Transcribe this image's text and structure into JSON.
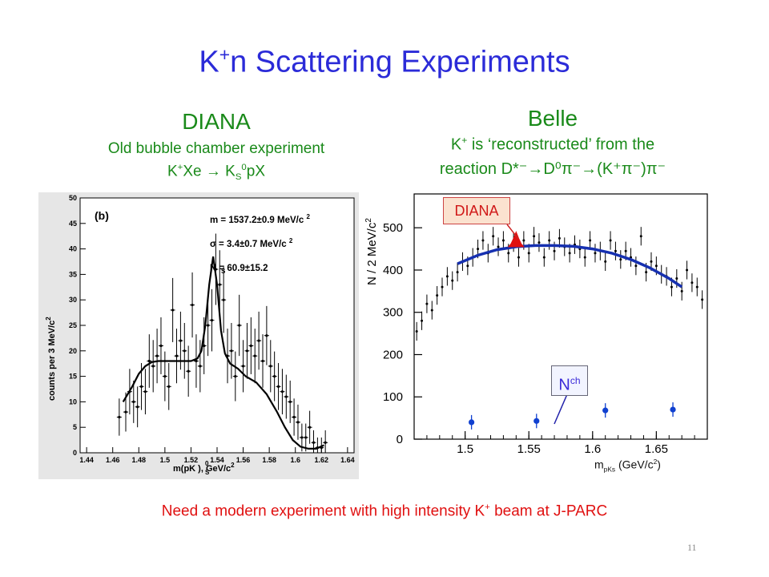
{
  "slide": {
    "title_main": "K",
    "title_sup": "+",
    "title_rest": "n Scattering Experiments",
    "page_number": "11",
    "footer_pre": "Need a modern experiment with high intensity K",
    "footer_sup": "+",
    "footer_post": " beam at J-PARC"
  },
  "diana": {
    "heading": "DIANA",
    "sub1": "Old bubble chamber experiment",
    "react_pre": "K",
    "react_sup": "+",
    "react_mid": "Xe  →  K",
    "react_sub": "S",
    "react_sup2": "0",
    "react_post": "pX"
  },
  "belle": {
    "heading": "Belle",
    "sub1_pre": "K",
    "sub1_sup": "+",
    "sub1_post": " is ‘reconstructed’ from the",
    "sub2": "reaction D*⁻→D⁰π⁻→(K⁺π⁻)π⁻"
  },
  "colors": {
    "title_blue": "#2b2bd8",
    "heading_green": "#1a8a1a",
    "footer_red": "#e01010",
    "fit_blue": "#1630b0",
    "peak_red": "#e01010",
    "point_blue": "#1040d0"
  },
  "chart_data": [
    {
      "type": "scatter",
      "panel_label": "(b)",
      "fit_lines": [
        "m = 1537.2±0.9 MeV/c ",
        "σ = 3.4±0.7 MeV/c ",
        "N  = 60.9±15.2"
      ],
      "fit_sub": "S",
      "fit_unit_sup": "2",
      "xlabel": "m(pK  ), GeV/c",
      "xlabel_sup": "0",
      "xlabel_sub": "S",
      "xlabel_sup2": "2",
      "ylabel": "counts per 3 MeV/c",
      "ylabel_sup": "2",
      "xlim": [
        1.435,
        1.645
      ],
      "ylim": [
        0,
        50
      ],
      "xticks": [
        "1.44",
        "1.46",
        "1.48",
        "1.5",
        "1.52",
        "1.54",
        "1.56",
        "1.58",
        "1.6",
        "1.62",
        "1.64"
      ],
      "yticks": [
        "0",
        "5",
        "10",
        "15",
        "20",
        "25",
        "30",
        "35",
        "40",
        "45",
        "50"
      ],
      "x": [
        1.465,
        1.47,
        1.473,
        1.476,
        1.479,
        1.482,
        1.485,
        1.488,
        1.491,
        1.494,
        1.497,
        1.5,
        1.503,
        1.506,
        1.509,
        1.512,
        1.515,
        1.518,
        1.521,
        1.524,
        1.527,
        1.53,
        1.533,
        1.536,
        1.539,
        1.542,
        1.545,
        1.548,
        1.551,
        1.554,
        1.557,
        1.56,
        1.563,
        1.566,
        1.569,
        1.572,
        1.575,
        1.578,
        1.581,
        1.584,
        1.587,
        1.59,
        1.593,
        1.596,
        1.599,
        1.602,
        1.605,
        1.608,
        1.611,
        1.614,
        1.617,
        1.62,
        1.623
      ],
      "y": [
        7,
        8,
        12,
        10,
        9,
        13,
        12,
        18,
        17,
        19,
        21,
        15,
        13,
        28,
        19,
        22,
        20,
        16,
        29,
        18,
        17,
        21,
        25,
        26,
        36,
        33,
        30,
        19,
        20,
        15,
        25,
        17,
        20,
        21,
        19,
        22,
        18,
        23,
        17,
        15,
        13,
        12,
        11,
        10,
        7,
        6,
        3,
        3,
        5,
        2,
        1,
        1,
        2
      ],
      "fit_x": [
        1.468,
        1.475,
        1.48,
        1.485,
        1.49,
        1.495,
        1.5,
        1.51,
        1.52,
        1.525,
        1.528,
        1.531,
        1.534,
        1.537,
        1.54,
        1.543,
        1.546,
        1.55,
        1.556,
        1.562,
        1.57,
        1.578,
        1.586,
        1.592,
        1.598,
        1.604,
        1.61,
        1.616,
        1.622
      ],
      "fit_y": [
        10,
        13,
        15.5,
        17,
        17.8,
        18,
        18,
        18,
        18,
        18.5,
        20,
        25,
        33,
        38.5,
        33,
        24,
        19.5,
        17.5,
        16.5,
        15,
        13.8,
        11.5,
        8,
        5,
        2.5,
        1.2,
        0.8,
        0.8,
        1.5
      ]
    },
    {
      "type": "scatter",
      "ylabel": "N / 2 MeV/c",
      "ylabel_sup": "2",
      "xlabel_main": "m",
      "xlabel_sub": "pKs",
      "xlabel_unit": " (GeV/c",
      "xlabel_sup": "2",
      "xlabel_close": ")",
      "xlim": [
        1.46,
        1.69
      ],
      "ylim": [
        0,
        580
      ],
      "xticks": [
        "1.5",
        "1.55",
        "1.6",
        "1.65"
      ],
      "yticks": [
        "0",
        "100",
        "200",
        "300",
        "400",
        "500"
      ],
      "annotation_diana": "DIANA",
      "annotation_nch_main": "N",
      "annotation_nch_sup": "ch",
      "series": [
        {
          "x": [
            1.462,
            1.466,
            1.47,
            1.474,
            1.478,
            1.482,
            1.486,
            1.49,
            1.494,
            1.498,
            1.502,
            1.506,
            1.51,
            1.514,
            1.518,
            1.522,
            1.526,
            1.53,
            1.534,
            1.538,
            1.542,
            1.546,
            1.55,
            1.554,
            1.558,
            1.562,
            1.566,
            1.57,
            1.574,
            1.578,
            1.582,
            1.586,
            1.59,
            1.594,
            1.598,
            1.602,
            1.606,
            1.61,
            1.614,
            1.618,
            1.622,
            1.626,
            1.63,
            1.634,
            1.638,
            1.642,
            1.646,
            1.65,
            1.654,
            1.658,
            1.662,
            1.666,
            1.67,
            1.674,
            1.678,
            1.682,
            1.686
          ],
          "y": [
            255,
            280,
            320,
            305,
            340,
            360,
            385,
            375,
            395,
            420,
            410,
            430,
            450,
            470,
            440,
            480,
            455,
            470,
            440,
            465,
            430,
            470,
            440,
            480,
            465,
            430,
            470,
            445,
            475,
            455,
            440,
            460,
            450,
            430,
            470,
            440,
            445,
            420,
            470,
            445,
            425,
            445,
            430,
            410,
            480,
            395,
            420,
            410,
            390,
            385,
            360,
            380,
            350,
            400,
            370,
            360,
            330
          ]
        },
        {
          "x": [
            1.505,
            1.556,
            1.61,
            1.663
          ],
          "y": [
            40,
            43,
            68,
            70
          ]
        }
      ],
      "fit_x": [
        1.494,
        1.51,
        1.525,
        1.54,
        1.555,
        1.57,
        1.585,
        1.6,
        1.615,
        1.63,
        1.645,
        1.66,
        1.67
      ],
      "fit_y": [
        415,
        435,
        448,
        455,
        458,
        458,
        456,
        450,
        440,
        425,
        405,
        380,
        360
      ],
      "peak_x": [
        1.534,
        1.536,
        1.538,
        1.54,
        1.542,
        1.544,
        1.546
      ],
      "peak_y": [
        455,
        462,
        475,
        490,
        475,
        462,
        455
      ]
    }
  ]
}
